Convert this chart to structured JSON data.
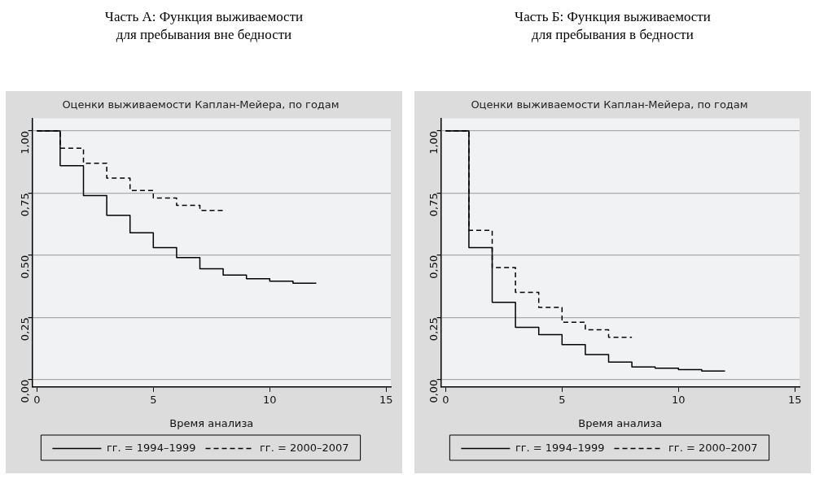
{
  "chart_data": [
    {
      "type": "step",
      "title": "Часть А: Функция выживаемости для пребывания вне бедности",
      "subtitle": "Оценки выживаемости Каплан-Мейера, по годам",
      "xlabel": "Время анализа",
      "series": [
        {
          "name": "гг. = 1994–1999",
          "color": "#000000",
          "line_style": "solid",
          "x": [
            0,
            1,
            2,
            3,
            4,
            5,
            6,
            7,
            8,
            9,
            10,
            11,
            12
          ],
          "values": [
            1.0,
            0.86,
            0.74,
            0.66,
            0.59,
            0.53,
            0.49,
            0.445,
            0.42,
            0.405,
            0.395,
            0.387,
            0.387
          ]
        },
        {
          "name": "гг. = 2000–2007",
          "color": "#000000",
          "line_style": "dashed",
          "x": [
            0,
            1,
            2,
            3,
            4,
            5,
            6,
            7,
            8
          ],
          "values": [
            1.0,
            0.93,
            0.87,
            0.81,
            0.76,
            0.73,
            0.7,
            0.68,
            0.68
          ]
        }
      ],
      "xlim": [
        -0.2,
        15.2
      ],
      "xticks": [
        0,
        5,
        10,
        15
      ],
      "ylim": [
        -0.03,
        1.05
      ],
      "yticks": [
        {
          "value": 0,
          "label": "0,00"
        },
        {
          "value": 0.25,
          "label": "0,25"
        },
        {
          "value": 0.5,
          "label": "0,50"
        },
        {
          "value": 0.75,
          "label": "0,75"
        },
        {
          "value": 1,
          "label": "1,00"
        }
      ],
      "grid": "y",
      "legend": "bottom"
    },
    {
      "type": "step",
      "title": "Часть Б: Функция выживаемости для пребывания в бедности",
      "subtitle": "Оценки выживаемости Каплан-Мейера, по годам",
      "xlabel": "Время анализа",
      "series": [
        {
          "name": "гг. = 1994–1999",
          "color": "#000000",
          "line_style": "solid",
          "x": [
            0,
            1,
            2,
            3,
            4,
            5,
            6,
            7,
            8,
            9,
            10,
            11,
            12
          ],
          "values": [
            1.0,
            0.53,
            0.31,
            0.21,
            0.18,
            0.14,
            0.1,
            0.07,
            0.05,
            0.045,
            0.04,
            0.034,
            0.034
          ]
        },
        {
          "name": "гг. = 2000–2007",
          "color": "#000000",
          "line_style": "dashed",
          "x": [
            0,
            1,
            2,
            3,
            4,
            5,
            6,
            7,
            8
          ],
          "values": [
            1.0,
            0.6,
            0.45,
            0.35,
            0.29,
            0.23,
            0.2,
            0.17,
            0.17
          ]
        }
      ],
      "xlim": [
        -0.2,
        15.2
      ],
      "xticks": [
        0,
        5,
        10,
        15
      ],
      "ylim": [
        -0.03,
        1.05
      ],
      "yticks": [
        {
          "value": 0,
          "label": "0,00"
        },
        {
          "value": 0.25,
          "label": "0,25"
        },
        {
          "value": 0.5,
          "label": "0,50"
        },
        {
          "value": 0.75,
          "label": "0,75"
        },
        {
          "value": 1,
          "label": "1,00"
        }
      ],
      "grid": "y",
      "legend": "bottom"
    }
  ]
}
